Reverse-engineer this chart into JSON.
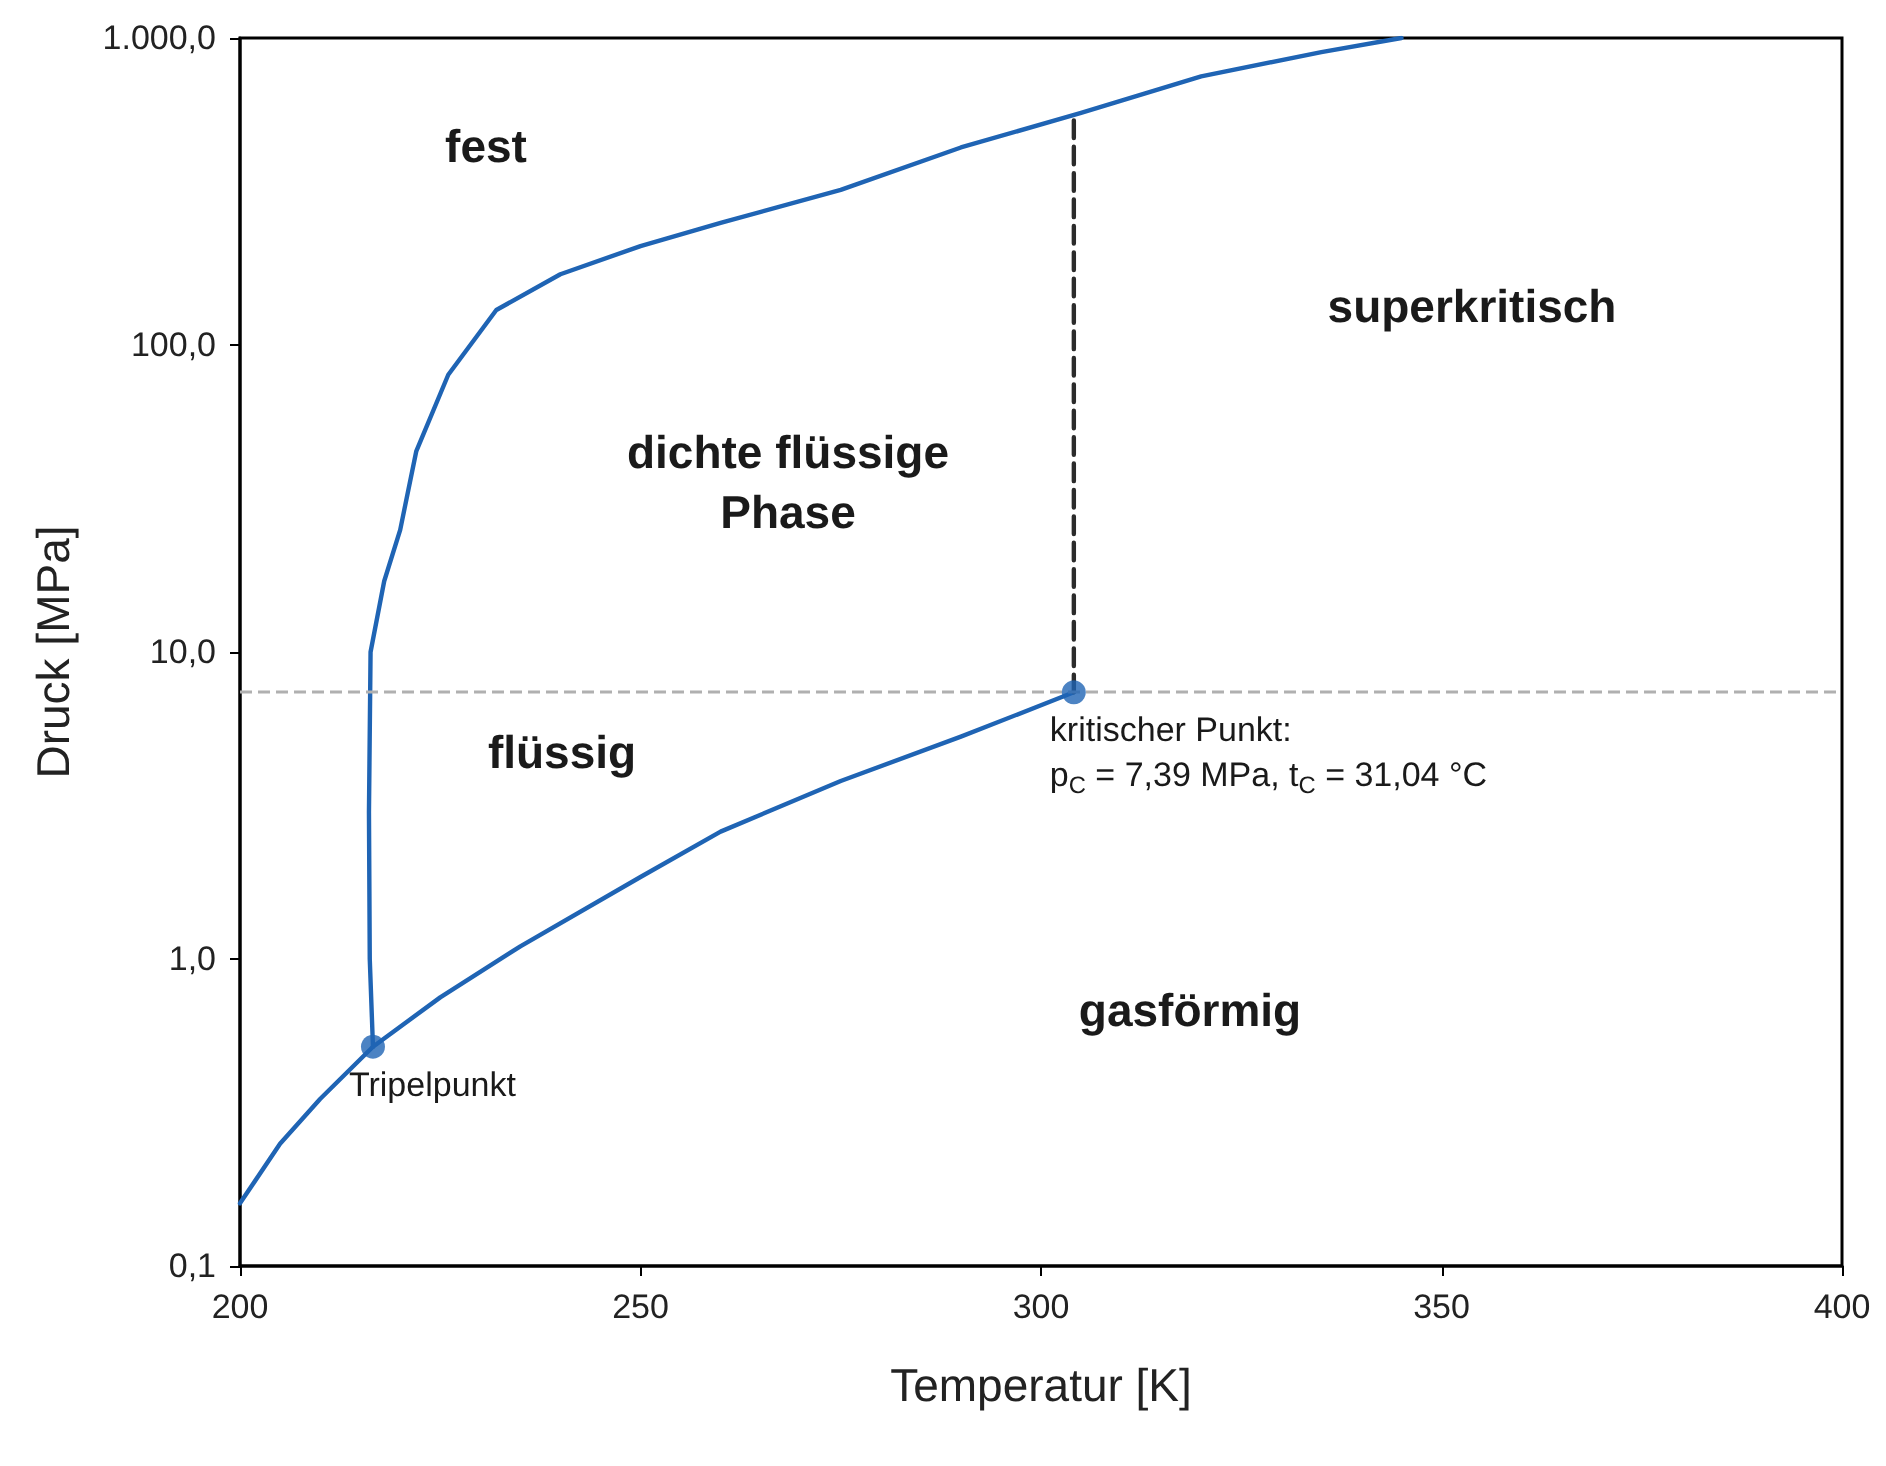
{
  "chart_data": {
    "type": "line",
    "xlabel": "Temperatur [K]",
    "ylabel": "Druck [MPa]",
    "xlim": [
      200,
      400
    ],
    "xticks": [
      200,
      250,
      300,
      350,
      400
    ],
    "ylim": [
      0.1,
      1000
    ],
    "yticks": [
      {
        "value": 0.1,
        "label": "0,1"
      },
      {
        "value": 1,
        "label": "1,0"
      },
      {
        "value": 10,
        "label": "10,0"
      },
      {
        "value": 100,
        "label": "100,0"
      },
      {
        "value": 1000,
        "label": "1.000,0"
      }
    ],
    "log": "y",
    "marker": "none",
    "series": [
      {
        "color": "#1f64b4",
        "x": [
          200,
          205,
          210,
          216.6
        ],
        "values": [
          0.16,
          0.25,
          0.35,
          0.518
        ]
      },
      {
        "color": "#1f64b4",
        "x": [
          216.6,
          225,
          235,
          250,
          260,
          275,
          290,
          304.1
        ],
        "values": [
          0.518,
          0.75,
          1.1,
          1.85,
          2.6,
          3.8,
          5.3,
          7.39
        ]
      },
      {
        "color": "#1f64b4",
        "x": [
          216.6,
          216.2,
          216.1,
          216.3,
          218,
          220,
          222,
          226,
          232,
          240,
          250,
          260,
          275,
          290,
          305,
          320,
          335,
          345
        ],
        "values": [
          0.518,
          1,
          3,
          10,
          17,
          25,
          45,
          80,
          130,
          170,
          210,
          250,
          320,
          440,
          570,
          750,
          900,
          1000
        ]
      },
      {
        "color": "#2b2b2b",
        "line_style": "dashed",
        "x": [
          304.1,
          304.1
        ],
        "values": [
          7.39,
          570
        ]
      },
      {
        "type": "scatter",
        "marker": "circle",
        "color": "#1f64b4",
        "x": [
          216.6,
          304.1
        ],
        "values": [
          0.518,
          7.39
        ]
      }
    ],
    "ref_lines": [
      {
        "axis": "y",
        "value": 7.39,
        "color": "#b0b0b0",
        "line_style": "dashed"
      }
    ],
    "annotations": [
      {
        "text": "Tripelpunkt",
        "x": 216.6,
        "y": 0.518
      },
      {
        "text": "kritischer Punkt:\np$_{C}$ = 7,39 MPa, t$_{C}$ = 31,04 °C",
        "x": 304.1,
        "y": 7.39
      },
      "fest",
      "superkritisch",
      "dichte flüssige\nPhase",
      "flüssig",
      "gasförmig"
    ]
  }
}
